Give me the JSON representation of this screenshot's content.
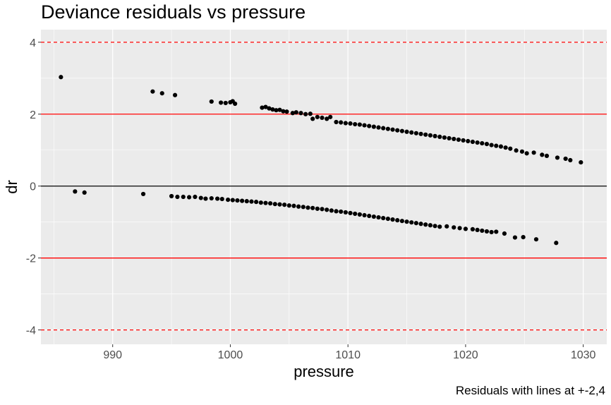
{
  "chart_data": {
    "type": "scatter",
    "title": "Deviance residuals vs pressure",
    "xlabel": "pressure",
    "ylabel": "dr",
    "caption": "Residuals with lines at +-2,4",
    "xlim": [
      983.9,
      1032.0
    ],
    "ylim": [
      -4.4,
      4.35
    ],
    "xticks": [
      990,
      1000,
      1010,
      1020,
      1030
    ],
    "yticks": [
      -4,
      -2,
      0,
      2,
      4
    ],
    "grid": true,
    "panel_color": "#ebebeb",
    "point_color": "#000000",
    "reference_lines": [
      {
        "y": 0,
        "style": "solid",
        "color": "#000000"
      },
      {
        "y": 2,
        "style": "solid",
        "color": "#ff0000"
      },
      {
        "y": -2,
        "style": "solid",
        "color": "#ff0000"
      },
      {
        "y": 4,
        "style": "dashed",
        "color": "#ff0000"
      },
      {
        "y": -4,
        "style": "dashed",
        "color": "#ff0000"
      }
    ],
    "series": [
      {
        "points": [
          [
            985.6,
            3.03
          ],
          [
            993.4,
            2.63
          ],
          [
            994.2,
            2.58
          ],
          [
            995.3,
            2.53
          ],
          [
            998.4,
            2.35
          ],
          [
            999.2,
            2.32
          ],
          [
            999.6,
            2.31
          ],
          [
            1000.0,
            2.33
          ],
          [
            1000.2,
            2.36
          ],
          [
            1000.4,
            2.29
          ],
          [
            1002.7,
            2.18
          ],
          [
            1003.0,
            2.2
          ],
          [
            1003.3,
            2.16
          ],
          [
            1003.6,
            2.13
          ],
          [
            1003.9,
            2.11
          ],
          [
            1004.2,
            2.12
          ],
          [
            1004.5,
            2.08
          ],
          [
            1004.8,
            2.07
          ],
          [
            1005.3,
            2.03
          ],
          [
            1005.6,
            2.05
          ],
          [
            1006.0,
            2.03
          ],
          [
            1006.4,
            2.0
          ],
          [
            1006.8,
            2.01
          ],
          [
            1007.0,
            1.87
          ],
          [
            1007.4,
            1.92
          ],
          [
            1007.8,
            1.9
          ],
          [
            1008.2,
            1.87
          ],
          [
            1008.5,
            1.92
          ],
          [
            1009.0,
            1.78
          ],
          [
            1009.4,
            1.77
          ],
          [
            1009.8,
            1.75
          ],
          [
            1010.2,
            1.74
          ],
          [
            1010.6,
            1.72
          ],
          [
            1011.0,
            1.71
          ],
          [
            1011.4,
            1.69
          ],
          [
            1011.8,
            1.67
          ],
          [
            1012.2,
            1.65
          ],
          [
            1012.6,
            1.63
          ],
          [
            1013.0,
            1.61
          ],
          [
            1013.4,
            1.59
          ],
          [
            1013.8,
            1.57
          ],
          [
            1014.2,
            1.55
          ],
          [
            1014.6,
            1.53
          ],
          [
            1015.0,
            1.51
          ],
          [
            1015.4,
            1.49
          ],
          [
            1015.8,
            1.47
          ],
          [
            1016.2,
            1.45
          ],
          [
            1016.6,
            1.43
          ],
          [
            1017.0,
            1.41
          ],
          [
            1017.4,
            1.39
          ],
          [
            1017.8,
            1.37
          ],
          [
            1018.2,
            1.35
          ],
          [
            1018.6,
            1.33
          ],
          [
            1019.0,
            1.31
          ],
          [
            1019.4,
            1.29
          ],
          [
            1019.8,
            1.27
          ],
          [
            1020.2,
            1.25
          ],
          [
            1020.6,
            1.23
          ],
          [
            1021.0,
            1.21
          ],
          [
            1021.4,
            1.19
          ],
          [
            1021.8,
            1.17
          ],
          [
            1022.2,
            1.14
          ],
          [
            1022.6,
            1.12
          ],
          [
            1023.0,
            1.1
          ],
          [
            1023.4,
            1.07
          ],
          [
            1023.8,
            1.04
          ],
          [
            1024.3,
            0.99
          ],
          [
            1024.8,
            0.96
          ],
          [
            1025.2,
            0.91
          ],
          [
            1025.8,
            0.93
          ],
          [
            1026.5,
            0.87
          ],
          [
            1026.9,
            0.84
          ],
          [
            1027.8,
            0.79
          ],
          [
            1028.5,
            0.76
          ],
          [
            1028.9,
            0.72
          ],
          [
            1029.8,
            0.66
          ],
          [
            986.8,
            -0.15
          ],
          [
            987.6,
            -0.18
          ],
          [
            992.6,
            -0.22
          ],
          [
            995.0,
            -0.28
          ],
          [
            995.5,
            -0.3
          ],
          [
            996.0,
            -0.3
          ],
          [
            996.5,
            -0.31
          ],
          [
            997.0,
            -0.3
          ],
          [
            997.5,
            -0.33
          ],
          [
            997.9,
            -0.35
          ],
          [
            998.4,
            -0.34
          ],
          [
            998.9,
            -0.35
          ],
          [
            999.3,
            -0.36
          ],
          [
            999.8,
            -0.38
          ],
          [
            1000.2,
            -0.39
          ],
          [
            1000.6,
            -0.4
          ],
          [
            1001.0,
            -0.41
          ],
          [
            1001.4,
            -0.42
          ],
          [
            1001.8,
            -0.43
          ],
          [
            1002.2,
            -0.44
          ],
          [
            1002.6,
            -0.46
          ],
          [
            1003.0,
            -0.47
          ],
          [
            1003.4,
            -0.48
          ],
          [
            1003.8,
            -0.5
          ],
          [
            1004.2,
            -0.51
          ],
          [
            1004.6,
            -0.52
          ],
          [
            1005.0,
            -0.54
          ],
          [
            1005.4,
            -0.55
          ],
          [
            1005.8,
            -0.57
          ],
          [
            1006.2,
            -0.58
          ],
          [
            1006.6,
            -0.6
          ],
          [
            1007.0,
            -0.61
          ],
          [
            1007.4,
            -0.63
          ],
          [
            1007.8,
            -0.64
          ],
          [
            1008.2,
            -0.66
          ],
          [
            1008.6,
            -0.68
          ],
          [
            1009.0,
            -0.7
          ],
          [
            1009.4,
            -0.71
          ],
          [
            1009.8,
            -0.73
          ],
          [
            1010.2,
            -0.75
          ],
          [
            1010.6,
            -0.77
          ],
          [
            1011.0,
            -0.79
          ],
          [
            1011.4,
            -0.81
          ],
          [
            1011.8,
            -0.83
          ],
          [
            1012.2,
            -0.85
          ],
          [
            1012.6,
            -0.87
          ],
          [
            1013.0,
            -0.89
          ],
          [
            1013.4,
            -0.91
          ],
          [
            1013.8,
            -0.93
          ],
          [
            1014.2,
            -0.95
          ],
          [
            1014.6,
            -0.97
          ],
          [
            1015.0,
            -0.99
          ],
          [
            1015.4,
            -1.01
          ],
          [
            1015.8,
            -1.03
          ],
          [
            1016.2,
            -1.05
          ],
          [
            1016.6,
            -1.07
          ],
          [
            1017.0,
            -1.09
          ],
          [
            1017.4,
            -1.11
          ],
          [
            1017.8,
            -1.13
          ],
          [
            1018.4,
            -1.12
          ],
          [
            1019.0,
            -1.15
          ],
          [
            1019.5,
            -1.17
          ],
          [
            1020.0,
            -1.19
          ],
          [
            1020.6,
            -1.2
          ],
          [
            1021.0,
            -1.22
          ],
          [
            1021.4,
            -1.24
          ],
          [
            1021.8,
            -1.26
          ],
          [
            1022.2,
            -1.28
          ],
          [
            1022.6,
            -1.27
          ],
          [
            1023.3,
            -1.32
          ],
          [
            1024.2,
            -1.43
          ],
          [
            1024.9,
            -1.42
          ],
          [
            1026.0,
            -1.48
          ],
          [
            1027.7,
            -1.58
          ]
        ]
      }
    ]
  }
}
